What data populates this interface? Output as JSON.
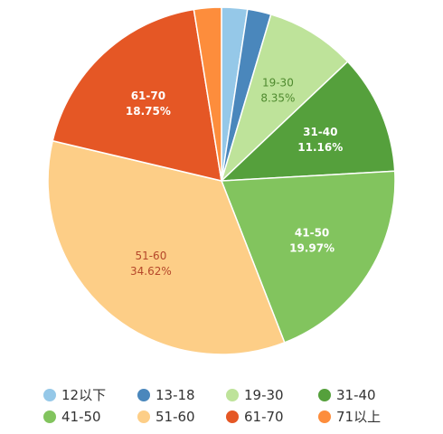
{
  "chart_data": {
    "type": "pie",
    "categories": [
      "12以下",
      "13-18",
      "19-30",
      "31-40",
      "41-50",
      "51-60",
      "61-70",
      "71以上"
    ],
    "values": [
      2.4,
      2.2,
      8.35,
      11.16,
      19.97,
      34.62,
      18.75,
      2.55
    ],
    "colors": [
      "#95C8E8",
      "#4A87BC",
      "#BEE39A",
      "#55A03C",
      "#82C45E",
      "#FDCE87",
      "#E55725",
      "#FD8D3C"
    ],
    "slice_labels": [
      null,
      null,
      {
        "name": "19-30",
        "pct": "8.35%"
      },
      {
        "name": "31-40",
        "pct": "11.16%"
      },
      {
        "name": "41-50",
        "pct": "19.97%"
      },
      {
        "name": "51-60",
        "pct": "34.62%"
      },
      {
        "name": "61-70",
        "pct": "18.75%"
      },
      null
    ],
    "label_colors": [
      null,
      null,
      "#4f8a2f",
      "#ffffff",
      "#ffffff",
      "#b5472a",
      "#ffffff",
      null
    ],
    "legend_position": "bottom"
  }
}
